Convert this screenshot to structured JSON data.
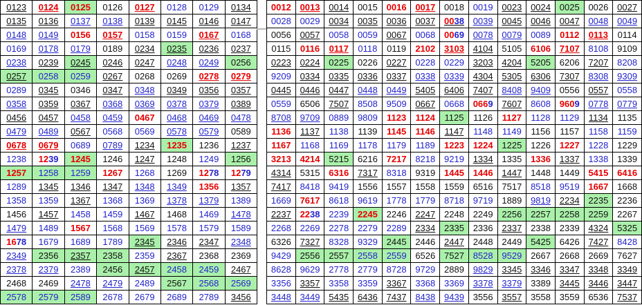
{
  "cell_format": "string cells are 'VALUE;flags' — flags: k=black text, b=blue text, r=red bold text, u=underlined link, g=green highlight; object cells {v,f,p} render two-tone digit groups p=[[digits,color]]",
  "colors": {
    "black_text": "#111111",
    "blue_text": "#2323cc",
    "red_text": "#e60000",
    "green_highlight": "#aaf0aa",
    "grid_border": "#000000",
    "section_separator": "#a9a9a9"
  },
  "tables": [
    {
      "id": "left",
      "columns": 8,
      "rows": [
        [
          "0123;ku",
          "0124;ru",
          "0125;rg",
          "0126;k",
          "0127;ru",
          "0128;b",
          "0129;b",
          "0134;ku"
        ],
        [
          "0135;ku",
          "0136;ku",
          "0137;bu",
          "0138;bu",
          "0139;ku",
          "0145;ku",
          "0146;ku",
          "0147;ku"
        ],
        [
          "0148;bu",
          "0149;bu",
          "0156;r",
          "0157;ru",
          "0158;b",
          "0159;b",
          "0167;ru",
          "0168;b"
        ],
        [
          "0169;b",
          "0178;bu",
          "0179;bu",
          "0189;k",
          "0234;ku",
          "0235;kug",
          "0236;ku",
          "0237;ku"
        ],
        [
          "0238;bu",
          "0239;ku",
          "0245;kug",
          "0246;ku",
          "0247;ku",
          "0248;bu",
          "0249;bu",
          "0256;kg"
        ],
        [
          "0257;kug",
          "0258;bg",
          "0259;bg",
          "0267;ku",
          "0268;k",
          "0269;k",
          "0278;ru",
          "0279;ru"
        ],
        [
          "0289;b",
          "0345;ku",
          "0346;k",
          "0347;ku",
          "0348;bu",
          "0349;ku",
          "0356;ku",
          "0357;ku"
        ],
        [
          "0358;bu",
          "0359;ku",
          "0367;ku",
          "0368;bu",
          "0369;bu",
          "0378;bu",
          "0379;bu",
          "0389;ku"
        ],
        [
          "0456;ku",
          "0457;ku",
          "0458;bu",
          "0459;bu",
          "0467;r",
          "0468;bu",
          "0469;bu",
          "0478;bu"
        ],
        [
          "0479;bu",
          "0489;bu",
          "0567;ku",
          "0568;b",
          "0569;b",
          "0578;bu",
          "0579;bu",
          "0589;k"
        ],
        [
          "0678;ru",
          "0679;ru",
          "0689;b",
          "0789;bu",
          "1234;ku",
          "1235;rg",
          "1236;k",
          "1237;ku"
        ],
        [
          "1238;b",
          {
            "v": "1239",
            "p": [
              [
                "12",
                "r"
              ],
              [
                "39",
                "b"
              ]
            ]
          },
          "1245;rg",
          "1246;k",
          "1247;ku",
          "1248;k",
          "1249;b",
          "1256;kg"
        ],
        [
          "1257;rg",
          "1258;bg",
          "1259;bg",
          "1267;r",
          "1268;b",
          "1269;k",
          {
            "v": "1278",
            "p": [
              [
                "12",
                "r"
              ],
              [
                "78",
                "b"
              ]
            ]
          },
          {
            "v": "1279",
            "p": [
              [
                "12",
                "r"
              ],
              [
                "79",
                "b"
              ]
            ]
          }
        ],
        [
          "1289;b",
          "1345;ku",
          "1346;ku",
          "1347;ku",
          "1348;bu",
          "1349;bu",
          "1356;r",
          "1357;ku"
        ],
        [
          "1358;b",
          "1359;b",
          "1367;ku",
          "1368;b",
          "1369;b",
          "1378;bu",
          "1379;bu",
          "1389;b"
        ],
        [
          "1456;k",
          "1457;ku",
          "1458;b",
          "1459;b",
          "1467;ku",
          "1468;k",
          "1469;b",
          "1478;bu"
        ],
        [
          "1479;bu",
          "1489;b",
          "1567;r",
          "1568;b",
          "1569;b",
          "1578;b",
          "1579;b",
          "1589;b"
        ],
        [
          {
            "v": "1678",
            "p": [
              [
                "16",
                "r"
              ],
              [
                "78",
                "b"
              ]
            ]
          },
          "1679;b",
          "1689;b",
          "1789;b",
          "2345;kug",
          "2346;ku",
          "2347;ku",
          "2348;bu"
        ],
        [
          "2349;bu",
          "2356;kg",
          "2357;kug",
          "2358;kg",
          "2359;b",
          "2367;ku",
          "2368;k",
          "2369;k"
        ],
        [
          "2378;bu",
          "2379;bu",
          "2389;b",
          "2456;kg",
          "2457;kug",
          "2458;bg",
          "2459;bg",
          "2467;ku"
        ],
        [
          "2468;k",
          "2469;k",
          "2478;bu",
          "2479;bu",
          "2489;b",
          "2567;kg",
          "2568;bg",
          "2569;bg"
        ],
        [
          "2578;bg",
          "2579;bg",
          "2589;bg",
          "2678;b",
          "2679;b",
          "2689;b",
          "2789;b",
          "3456;ku"
        ]
      ]
    },
    {
      "id": "right",
      "columns": 13,
      "rows": [
        [
          "0012;r",
          "0013;ru",
          "0014;ku",
          "0015;k",
          "0016;r",
          "0017;ru",
          "0018;k",
          "0019;b",
          "0023;ku",
          "0024;ku",
          "0025;kg",
          "0026;k",
          "0027;ku"
        ],
        [
          "0028;b",
          "0029;b",
          "0034;ku",
          "0035;ku",
          "0036;ku",
          "0037;ku",
          {
            "v": "0038",
            "f": "u",
            "p": [
              [
                "00",
                "r"
              ],
              [
                "38",
                "b"
              ]
            ]
          },
          "0039;bu",
          "0045;ku",
          "0046;ku",
          "0047;ku",
          "0048;bu",
          "0049;bu"
        ],
        [
          "0056;k",
          "0057;ku",
          "0058;b",
          "0059;b",
          "0067;ku",
          "0068;b",
          {
            "v": "0069",
            "p": [
              [
                "00",
                "r"
              ],
              [
                "69",
                "b"
              ]
            ]
          },
          "0078;bu",
          "0079;bu",
          "0089;b",
          "0112;r",
          "0113;ru",
          "0114;k"
        ],
        [
          "0115;k",
          "0116;r",
          "0117;ru",
          "0118;b",
          "0119;k",
          "2102;r",
          "3103;ru",
          "4104;ku",
          "5105;k",
          "6106;r",
          "7107;ru",
          "8108;b",
          "9109;k"
        ],
        [
          "0223;ku",
          "0224;ku",
          "0225;kg",
          "0226;k",
          "0227;ku",
          "0228;b",
          "0229;b",
          "3203;ku",
          "4204;ku",
          "5205;kg",
          "6206;k",
          "7207;ku",
          "8208;b"
        ],
        [
          "9209;b",
          "0334;ku",
          "0335;ku",
          "0336;ku",
          "0337;ku",
          "0338;bu",
          "0339;bu",
          "4304;ku",
          "5305;ku",
          "6306;ku",
          "7307;ku",
          "8308;bu",
          "9309;bu"
        ],
        [
          "0445;ku",
          "0446;ku",
          "0447;ku",
          "0448;bu",
          "0449;bu",
          "5405;ku",
          "6406;ku",
          "7407;ku",
          "8408;bu",
          "9409;bu",
          "0556;k",
          "0557;ku",
          "0558;b"
        ],
        [
          "0559;b",
          "6506;k",
          "7507;ku",
          "8508;b",
          "9509;b",
          "0667;ku",
          "0668;b",
          {
            "v": "0669",
            "p": [
              [
                "066",
                "r"
              ],
              [
                "9",
                "b"
              ]
            ]
          },
          "7607;ku",
          "8608;b",
          {
            "v": "9609",
            "p": [
              [
                "960",
                "r"
              ],
              [
                "9",
                "b"
              ]
            ]
          },
          "0778;bu",
          "0779;bu"
        ],
        [
          "8708;bu",
          "9709;bu",
          "0889;b",
          "9809;b",
          "1123;r",
          "1124;r",
          "1125;kg",
          "1126;k",
          "1127;r",
          "1128;b",
          "1129;b",
          "1134;ku",
          "1135;k"
        ],
        [
          "1136;r",
          "1137;ku",
          "1138;b",
          "1139;k",
          "1145;r",
          "1146;r",
          "1147;ku",
          "1148;b",
          "1149;b",
          "1156;k",
          "1157;k",
          "1158;b",
          "1159;b"
        ],
        [
          "1167;r",
          "1168;b",
          "1169;b",
          "1178;b",
          "1179;b",
          "1189;b",
          "1223;r",
          "1224;r",
          "1225;kg",
          "1226;k",
          "1227;r",
          "1228;b",
          "1229;k"
        ],
        [
          "3213;r",
          "4214;r",
          "5215;kg",
          "6216;k",
          "7217;r",
          "8218;b",
          "9219;b",
          "1334;ku",
          "1335;k",
          "1336;r",
          "1337;ku",
          "1338;b",
          "1339;k"
        ],
        [
          "4314;ku",
          "5315;k",
          "6316;r",
          "7317;ku",
          "8318;b",
          "9319;k",
          "1445;r",
          "1446;r",
          "1447;ku",
          "1448;k",
          "1449;k",
          "5415;r",
          "6416;r"
        ],
        [
          "7417;ku",
          "8418;b",
          "9419;b",
          "1556;k",
          "1557;k",
          "1558;k",
          "1559;k",
          "6516;k",
          "7517;k",
          "8518;b",
          "9519;b",
          "1667;r",
          "1668;k"
        ],
        [
          "1669;b",
          "7617;r",
          "8618;b",
          "9619;b",
          "1778;b",
          "1779;b",
          "8718;b",
          "9719;b",
          "1889;k",
          "9819;bu",
          "2234;ku",
          "2235;kg",
          "2236;k"
        ],
        [
          "2237;ku",
          {
            "v": "2238",
            "p": [
              [
                "22",
                "r"
              ],
              [
                "38",
                "b"
              ]
            ]
          },
          "2239;b",
          "2245;rg",
          "2246;k",
          "2247;ku",
          "2248;k",
          "2249;k",
          "2256;kg",
          "2257;kg",
          "2258;kg",
          "2259;kg",
          "2267;k"
        ],
        [
          "2268;b",
          "2269;b",
          "2278;b",
          "2279;b",
          "2289;b",
          "2334;ku",
          "2335;kg",
          "2336;k",
          "2337;ku",
          "2338;k",
          "2339;k",
          "4324;ku",
          "5325;kg"
        ],
        [
          "6326;k",
          "7327;ku",
          "8328;b",
          "9329;b",
          "2445;kg",
          "2446;k",
          "2447;ku",
          "2448;k",
          "2449;k",
          "5425;kg",
          "6426;k",
          "7427;ku",
          "8428;b"
        ],
        [
          "9429;b",
          "2556;kg",
          "2557;kg",
          "2558;bg",
          "2559;bg",
          "6526;k",
          "7527;kg",
          "8528;bg",
          "9529;bg",
          "2667;k",
          "2668;k",
          "2669;k",
          "7627;k"
        ],
        [
          "8628;b",
          "9629;b",
          "2778;b",
          "2779;b",
          "8728;b",
          "9729;b",
          "2889;k",
          "9829;bu",
          "3345;ku",
          "3346;ku",
          "3347;ku",
          "3348;ku",
          "3349;ku"
        ],
        [
          "3356;b",
          "3357;ku",
          "3358;b",
          "3359;b",
          "3367;ku",
          "3368;b",
          "3369;b",
          "3378;bu",
          "3379;bu",
          "3389;k",
          "3445;ku",
          "3446;ku",
          "3447;ku"
        ],
        [
          "3448;bu",
          "3449;bu",
          "5435;ku",
          "6436;ku",
          "7437;ku",
          "8438;bu",
          "9439;bu",
          "3556;k",
          "3557;ku",
          "3558;k",
          "3559;k",
          "6536;k",
          "7537;ku"
        ]
      ]
    }
  ]
}
